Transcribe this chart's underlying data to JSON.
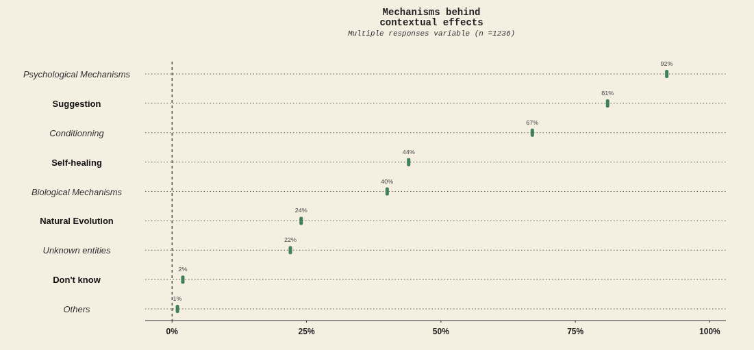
{
  "chart_data": {
    "type": "scatter",
    "orientation": "horizontal",
    "title": "Mechanisms behind\ncontextual effects",
    "subtitle": "Multiple responses variable (n =1236)",
    "categories": [
      "Psychological Mechanisms",
      "Suggestion",
      "Conditionning",
      "Self-healing",
      "Biological Mechanisms",
      "Natural Evolution",
      "Unknown entities",
      "Don't know",
      "Others"
    ],
    "series": [
      {
        "color": "#3f7f5c",
        "values": [
          92,
          81,
          67,
          44,
          40,
          24,
          22,
          2,
          1
        ],
        "value_labels": [
          "92%",
          "81%",
          "67%",
          "44%",
          "40%",
          "24%",
          "22%",
          "2%",
          "1%"
        ]
      }
    ],
    "xlim": [
      -5,
      103
    ],
    "xticks": [
      {
        "value": 0,
        "label": "0%"
      },
      {
        "value": 25,
        "label": "25%"
      },
      {
        "value": 50,
        "label": "50%"
      },
      {
        "value": 75,
        "label": "75%"
      },
      {
        "value": 100,
        "label": "100%"
      }
    ],
    "grid": "y",
    "ref_lines": [
      {
        "axis": "x",
        "value": 0,
        "line_style": "dashed"
      }
    ]
  }
}
